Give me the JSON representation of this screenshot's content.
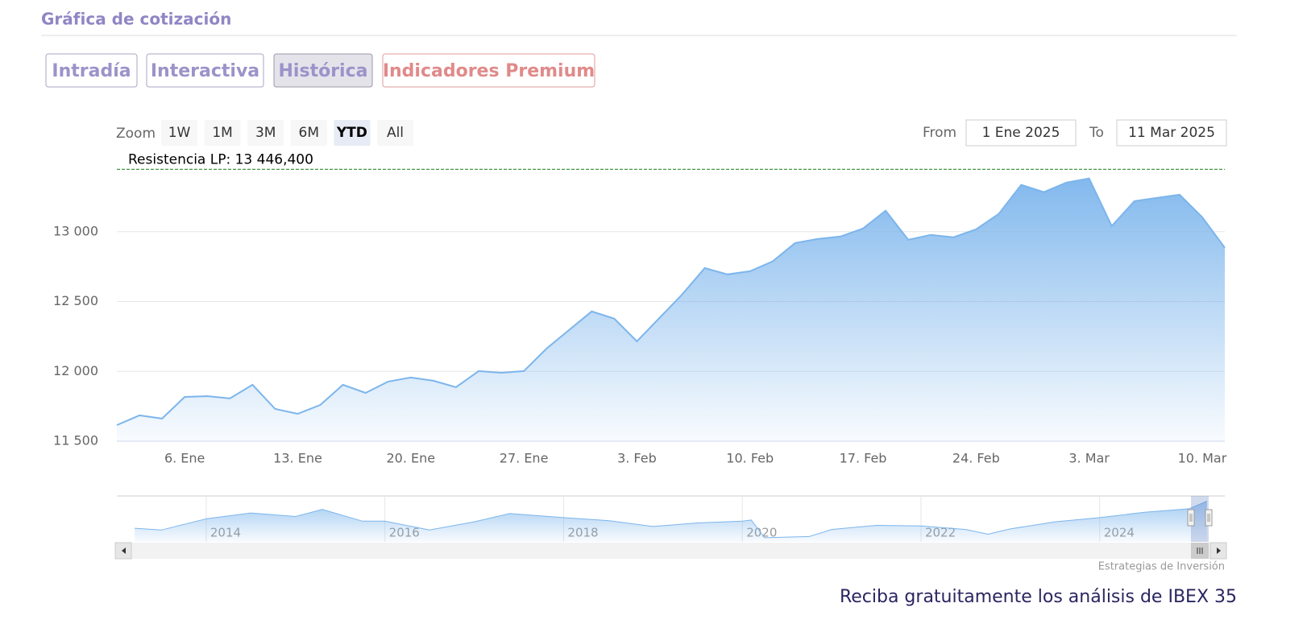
{
  "header": {
    "title": "Gráfica de cotización"
  },
  "tabs": [
    "Intradía",
    "Interactiva",
    "Histórica",
    "Indicadores Premium"
  ],
  "active_tab": 2,
  "range_selector": {
    "label": "Zoom",
    "buttons": [
      "1W",
      "1M",
      "3M",
      "6M",
      "YTD",
      "All"
    ],
    "selected": 4,
    "from_label": "From",
    "from": "1 Ene 2025",
    "to_label": "To",
    "to": "11 Mar 2025"
  },
  "chart_data": {
    "type": "area",
    "categories": [
      null,
      null,
      null,
      "6. Ene",
      null,
      null,
      null,
      null,
      "13. Ene",
      null,
      null,
      null,
      null,
      "20. Ene",
      null,
      null,
      null,
      null,
      "27. Ene",
      null,
      null,
      null,
      null,
      "3. Feb",
      null,
      null,
      null,
      null,
      "10. Feb",
      null,
      null,
      null,
      null,
      "17. Feb",
      null,
      null,
      null,
      null,
      "24. Feb",
      null,
      null,
      null,
      null,
      "3. Mar",
      null,
      null,
      null,
      null,
      "10. Mar",
      null
    ],
    "values": [
      11615,
      11685,
      11662,
      11817,
      11823,
      11806,
      11904,
      11731,
      11696,
      11760,
      11904,
      11846,
      11927,
      11956,
      11933,
      11887,
      12002,
      11990,
      12002,
      12163,
      12296,
      12429,
      12377,
      12215,
      12383,
      12550,
      12740,
      12694,
      12717,
      12787,
      12919,
      12948,
      12965,
      13023,
      13150,
      12942,
      12977,
      12960,
      13017,
      13127,
      13335,
      13283,
      13352,
      13381,
      13040,
      13219,
      13242,
      13265,
      13104,
      12885
    ],
    "color": "#7cb5ec",
    "ylim": [
      11500,
      13500
    ],
    "yticks": [
      {
        "value": 11500,
        "label": "11 500"
      },
      {
        "value": 12000,
        "label": "12 000"
      },
      {
        "value": 12500,
        "label": "12 500"
      },
      {
        "value": 13000,
        "label": "13 000"
      }
    ],
    "grid": true,
    "resistance": {
      "label": "Resistencia LP: 13 446,400",
      "value": 13446.4,
      "color": "#2e8b2e"
    },
    "credit": "Estrategias de Inversión",
    "navigator": {
      "type": "area",
      "x": [
        2013.2,
        2013.5,
        2014,
        2014.5,
        2015,
        2015.3,
        2015.75,
        2016,
        2016.5,
        2017,
        2017.4,
        2018,
        2018.5,
        2019,
        2019.5,
        2020,
        2020.1,
        2020.25,
        2020.75,
        2021,
        2021.5,
        2022,
        2022.5,
        2022.75,
        2023,
        2023.5,
        2024,
        2024.5,
        2025,
        2025.2
      ],
      "values": [
        8300,
        8000,
        9900,
        10900,
        10300,
        11500,
        9500,
        9500,
        8000,
        9400,
        10800,
        10100,
        9600,
        8600,
        9200,
        9500,
        9700,
        6700,
        6900,
        8100,
        8800,
        8700,
        8100,
        7300,
        8200,
        9400,
        10100,
        11000,
        11600,
        12900
      ],
      "xlim": [
        2013,
        2025.4
      ],
      "ylim": [
        6000,
        13500
      ],
      "xticks": [
        2014,
        2016,
        2018,
        2020,
        2022,
        2024
      ]
    }
  },
  "footer": {
    "cta": "Reciba gratuitamente los análisis de IBEX 35"
  }
}
